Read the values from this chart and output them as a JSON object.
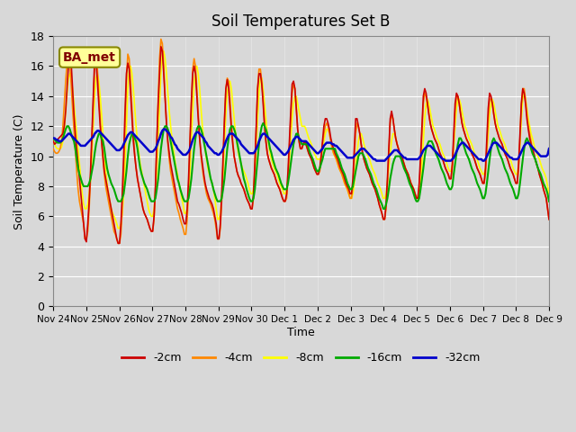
{
  "title": "Soil Temperatures Set B",
  "xlabel": "Time",
  "ylabel": "Soil Temperature (C)",
  "station_label": "BA_met",
  "ylim": [
    0,
    18
  ],
  "yticks": [
    0,
    2,
    4,
    6,
    8,
    10,
    12,
    14,
    16,
    18
  ],
  "x_labels": [
    "Nov 24",
    "Nov 25",
    "Nov 26",
    "Nov 27",
    "Nov 28",
    "Nov 29",
    "Nov 30",
    "Dec 1",
    "Dec 2",
    "Dec 3",
    "Dec 4",
    "Dec 5",
    "Dec 6",
    "Dec 7",
    "Dec 8",
    "Dec 9"
  ],
  "legend_labels": [
    "-2cm",
    "-4cm",
    "-8cm",
    "-16cm",
    "-32cm"
  ],
  "legend_colors": [
    "#cc0000",
    "#ff8800",
    "#ffff00",
    "#00aa00",
    "#0000cc"
  ],
  "plot_bg_color": "#d8d8d8",
  "n_points_per_day": 24,
  "num_days": 15,
  "depth_2cm": [
    11.0,
    10.8,
    10.9,
    11.1,
    11.2,
    11.3,
    11.4,
    11.5,
    12.0,
    13.0,
    14.5,
    16.0,
    16.8,
    16.2,
    14.5,
    12.8,
    11.5,
    10.5,
    9.5,
    8.5,
    7.5,
    6.5,
    5.5,
    4.5,
    4.3,
    5.5,
    7.0,
    9.0,
    11.5,
    14.0,
    16.5,
    16.3,
    15.0,
    13.5,
    12.0,
    11.0,
    10.0,
    9.0,
    8.5,
    8.0,
    7.5,
    7.0,
    6.5,
    6.0,
    5.5,
    5.0,
    4.5,
    4.2,
    4.2,
    5.5,
    7.5,
    10.0,
    13.0,
    15.5,
    16.2,
    15.8,
    14.2,
    12.5,
    11.0,
    10.0,
    9.2,
    8.5,
    8.0,
    7.5,
    7.0,
    6.5,
    6.2,
    6.0,
    5.8,
    5.5,
    5.2,
    5.0,
    5.0,
    6.0,
    8.0,
    11.0,
    13.5,
    15.5,
    17.3,
    17.0,
    15.5,
    13.8,
    12.2,
    11.0,
    10.2,
    9.5,
    9.0,
    8.5,
    8.0,
    7.5,
    7.0,
    6.8,
    6.5,
    6.2,
    5.8,
    5.5,
    5.5,
    6.5,
    8.5,
    11.0,
    13.5,
    15.5,
    16.0,
    15.5,
    14.0,
    12.5,
    11.2,
    10.2,
    9.5,
    8.8,
    8.2,
    7.8,
    7.5,
    7.2,
    7.0,
    6.8,
    6.5,
    6.0,
    5.5,
    4.5,
    4.5,
    5.5,
    7.5,
    10.0,
    12.5,
    14.5,
    15.1,
    14.5,
    13.2,
    11.8,
    10.8,
    10.0,
    9.5,
    9.0,
    8.7,
    8.5,
    8.2,
    8.0,
    7.8,
    7.5,
    7.2,
    7.0,
    6.8,
    6.5,
    6.5,
    7.5,
    9.5,
    12.0,
    14.5,
    15.5,
    15.5,
    14.8,
    13.5,
    12.0,
    11.0,
    10.2,
    9.8,
    9.5,
    9.2,
    9.0,
    8.8,
    8.5,
    8.2,
    8.0,
    7.8,
    7.5,
    7.2,
    7.0,
    7.0,
    7.5,
    9.0,
    11.0,
    13.0,
    14.8,
    15.0,
    14.5,
    13.2,
    11.8,
    11.0,
    10.5,
    10.5,
    10.8,
    11.0,
    10.8,
    10.5,
    10.2,
    10.0,
    9.8,
    9.5,
    9.2,
    9.0,
    8.8,
    8.8,
    9.2,
    10.0,
    11.0,
    12.0,
    12.5,
    12.5,
    12.2,
    11.8,
    11.2,
    10.8,
    10.5,
    10.2,
    10.0,
    9.8,
    9.5,
    9.2,
    9.0,
    8.8,
    8.5,
    8.2,
    8.0,
    7.8,
    7.5,
    7.5,
    8.5,
    10.5,
    12.5,
    12.5,
    12.0,
    11.5,
    10.8,
    10.2,
    9.8,
    9.5,
    9.2,
    9.0,
    8.8,
    8.5,
    8.2,
    8.0,
    7.8,
    7.5,
    7.2,
    6.8,
    6.5,
    6.2,
    5.8,
    5.8,
    6.8,
    8.5,
    10.5,
    12.5,
    13.0,
    12.5,
    11.8,
    11.2,
    10.8,
    10.5,
    10.2,
    10.0,
    9.8,
    9.5,
    9.2,
    9.0,
    8.8,
    8.5,
    8.2,
    8.0,
    7.8,
    7.5,
    7.2,
    7.2,
    8.2,
    10.0,
    12.0,
    14.0,
    14.5,
    14.2,
    13.5,
    12.8,
    12.2,
    11.8,
    11.5,
    11.2,
    11.0,
    10.8,
    10.5,
    10.2,
    10.0,
    9.8,
    9.5,
    9.2,
    9.0,
    8.8,
    8.5,
    8.5,
    9.5,
    11.5,
    13.5,
    14.2,
    14.0,
    13.5,
    12.8,
    12.2,
    11.8,
    11.5,
    11.2,
    11.0,
    10.8,
    10.5,
    10.2,
    10.0,
    9.8,
    9.5,
    9.2,
    9.0,
    8.8,
    8.5,
    8.2,
    8.2,
    9.2,
    11.2,
    13.2,
    14.2,
    14.0,
    13.5,
    12.8,
    12.2,
    11.8,
    11.5,
    11.2,
    11.0,
    10.8,
    10.5,
    10.2,
    10.0,
    9.8,
    9.5,
    9.2,
    9.0,
    8.8,
    8.5,
    8.2,
    8.2,
    9.5,
    11.5,
    13.5,
    14.5,
    14.2,
    13.5,
    12.5,
    11.8,
    11.2,
    10.8,
    10.5,
    10.2,
    9.8,
    9.5,
    9.2,
    8.8,
    8.5,
    8.2,
    7.8,
    7.5,
    7.2,
    6.5,
    5.8
  ],
  "depth_4cm": [
    10.5,
    10.3,
    10.2,
    10.2,
    10.3,
    10.5,
    11.0,
    12.0,
    13.5,
    15.0,
    16.2,
    16.5,
    16.0,
    14.8,
    13.2,
    11.8,
    10.5,
    9.0,
    7.8,
    7.0,
    6.5,
    6.0,
    5.5,
    4.5,
    4.5,
    5.0,
    6.5,
    8.5,
    11.0,
    13.5,
    16.0,
    16.5,
    15.8,
    14.0,
    12.5,
    11.0,
    9.8,
    8.8,
    8.0,
    7.5,
    7.0,
    6.5,
    6.0,
    5.5,
    5.0,
    4.8,
    4.5,
    4.2,
    4.2,
    4.8,
    6.5,
    9.0,
    12.0,
    15.0,
    16.8,
    16.5,
    15.0,
    13.2,
    11.5,
    10.2,
    9.2,
    8.5,
    8.0,
    7.5,
    7.0,
    6.5,
    6.2,
    6.0,
    5.8,
    5.5,
    5.2,
    5.0,
    5.0,
    5.8,
    7.8,
    10.8,
    13.8,
    16.5,
    17.8,
    17.5,
    16.0,
    14.0,
    12.2,
    10.8,
    9.8,
    9.0,
    8.5,
    8.0,
    7.5,
    7.0,
    6.5,
    6.2,
    5.8,
    5.5,
    5.2,
    4.8,
    4.8,
    5.8,
    7.8,
    10.8,
    13.5,
    15.8,
    16.5,
    16.0,
    14.5,
    12.8,
    11.2,
    10.0,
    9.2,
    8.5,
    8.0,
    7.5,
    7.2,
    7.0,
    6.8,
    6.5,
    6.2,
    5.8,
    5.2,
    4.5,
    4.5,
    5.2,
    7.0,
    9.5,
    12.2,
    14.5,
    15.2,
    15.0,
    13.8,
    12.2,
    11.0,
    10.0,
    9.5,
    9.0,
    8.7,
    8.5,
    8.2,
    8.0,
    7.8,
    7.5,
    7.2,
    7.0,
    6.8,
    6.5,
    6.5,
    7.2,
    9.2,
    11.8,
    14.5,
    15.8,
    15.8,
    15.0,
    13.8,
    12.2,
    11.0,
    10.2,
    9.8,
    9.5,
    9.2,
    9.0,
    8.8,
    8.5,
    8.2,
    8.0,
    7.8,
    7.5,
    7.2,
    7.0,
    7.0,
    7.2,
    8.5,
    10.5,
    12.5,
    14.2,
    14.8,
    14.5,
    13.2,
    11.8,
    11.0,
    10.5,
    10.5,
    10.8,
    11.0,
    10.8,
    10.5,
    10.2,
    10.0,
    9.8,
    9.5,
    9.2,
    9.0,
    8.8,
    8.8,
    9.0,
    9.8,
    10.8,
    11.5,
    12.0,
    12.2,
    12.0,
    11.5,
    11.0,
    10.5,
    10.2,
    10.0,
    9.8,
    9.5,
    9.2,
    9.0,
    8.8,
    8.5,
    8.2,
    8.0,
    7.8,
    7.5,
    7.2,
    7.2,
    8.0,
    9.8,
    11.5,
    12.2,
    12.0,
    11.5,
    10.8,
    10.2,
    9.8,
    9.5,
    9.2,
    9.0,
    8.8,
    8.5,
    8.2,
    8.0,
    7.8,
    7.5,
    7.2,
    6.8,
    6.5,
    6.2,
    5.8,
    5.8,
    6.5,
    8.2,
    10.2,
    12.2,
    12.8,
    12.5,
    11.8,
    11.2,
    10.8,
    10.5,
    10.2,
    10.0,
    9.8,
    9.5,
    9.2,
    9.0,
    8.8,
    8.5,
    8.2,
    8.0,
    7.8,
    7.5,
    7.2,
    7.2,
    7.8,
    9.5,
    11.5,
    13.5,
    14.2,
    14.0,
    13.5,
    12.8,
    12.2,
    11.8,
    11.5,
    11.2,
    11.0,
    10.8,
    10.5,
    10.2,
    10.0,
    9.8,
    9.5,
    9.2,
    9.0,
    8.8,
    8.5,
    8.5,
    9.2,
    11.0,
    13.0,
    14.0,
    14.0,
    13.5,
    12.8,
    12.2,
    11.8,
    11.5,
    11.2,
    11.0,
    10.8,
    10.5,
    10.2,
    10.0,
    9.8,
    9.5,
    9.2,
    9.0,
    8.8,
    8.5,
    8.2,
    8.2,
    8.8,
    10.5,
    12.5,
    13.8,
    13.8,
    13.5,
    12.8,
    12.2,
    11.8,
    11.5,
    11.2,
    11.0,
    10.8,
    10.5,
    10.2,
    10.0,
    9.8,
    9.5,
    9.2,
    9.0,
    8.8,
    8.5,
    8.2,
    8.2,
    9.2,
    11.2,
    13.5,
    14.5,
    14.5,
    13.8,
    12.8,
    12.0,
    11.5,
    11.0,
    10.5,
    10.2,
    9.8,
    9.5,
    9.2,
    8.8,
    8.5,
    8.2,
    7.8,
    7.5,
    7.2,
    6.5,
    5.8
  ],
  "depth_8cm": [
    11.0,
    10.8,
    10.6,
    10.5,
    10.5,
    10.5,
    10.6,
    11.0,
    11.8,
    13.0,
    14.2,
    15.2,
    15.5,
    15.2,
    14.5,
    13.5,
    12.5,
    11.5,
    10.5,
    9.5,
    8.5,
    7.5,
    6.8,
    6.5,
    6.5,
    6.8,
    7.5,
    8.5,
    10.0,
    12.0,
    14.0,
    15.2,
    15.5,
    15.0,
    14.0,
    12.8,
    11.5,
    10.2,
    9.0,
    8.2,
    7.5,
    7.0,
    6.5,
    6.2,
    6.0,
    5.8,
    5.5,
    5.2,
    5.2,
    5.5,
    6.2,
    7.5,
    9.5,
    12.0,
    14.5,
    15.8,
    16.0,
    15.5,
    14.5,
    13.2,
    12.0,
    11.0,
    10.2,
    9.5,
    9.0,
    8.5,
    8.0,
    7.5,
    7.0,
    6.5,
    6.2,
    6.0,
    6.0,
    6.5,
    7.5,
    9.0,
    11.0,
    13.5,
    15.5,
    16.8,
    17.0,
    16.5,
    15.5,
    14.2,
    13.0,
    12.0,
    11.2,
    10.5,
    9.8,
    9.2,
    8.8,
    8.2,
    7.8,
    7.2,
    6.8,
    6.2,
    6.2,
    6.5,
    7.5,
    9.0,
    11.0,
    13.0,
    14.8,
    15.8,
    16.0,
    15.5,
    14.5,
    13.2,
    12.0,
    11.2,
    10.5,
    9.8,
    9.2,
    8.8,
    8.5,
    8.2,
    7.8,
    7.2,
    6.5,
    5.8,
    5.8,
    6.2,
    7.2,
    8.8,
    10.8,
    12.8,
    14.2,
    14.8,
    15.0,
    14.5,
    13.5,
    12.5,
    11.5,
    10.8,
    10.2,
    9.8,
    9.5,
    9.2,
    9.0,
    8.8,
    8.5,
    8.2,
    7.8,
    7.5,
    7.5,
    7.8,
    8.8,
    10.5,
    12.5,
    14.2,
    15.2,
    15.2,
    14.5,
    13.5,
    12.5,
    11.5,
    10.8,
    10.2,
    9.8,
    9.5,
    9.2,
    9.0,
    8.8,
    8.5,
    8.2,
    8.0,
    7.8,
    7.5,
    7.5,
    7.8,
    8.5,
    9.8,
    11.2,
    12.5,
    13.5,
    14.0,
    14.0,
    13.5,
    13.0,
    12.5,
    12.0,
    12.0,
    12.0,
    11.8,
    11.5,
    11.2,
    11.0,
    10.8,
    10.5,
    10.2,
    10.0,
    9.8,
    9.8,
    9.8,
    10.0,
    10.5,
    11.0,
    11.5,
    11.8,
    11.8,
    11.5,
    11.0,
    10.5,
    10.2,
    10.0,
    9.8,
    9.5,
    9.2,
    9.0,
    8.8,
    8.5,
    8.2,
    8.0,
    7.8,
    7.5,
    7.2,
    7.2,
    7.5,
    8.2,
    9.2,
    10.2,
    11.0,
    11.5,
    11.5,
    11.2,
    10.8,
    10.5,
    10.2,
    10.0,
    9.8,
    9.5,
    9.2,
    9.0,
    8.8,
    8.5,
    8.2,
    8.0,
    7.8,
    7.5,
    7.2,
    7.2,
    7.5,
    8.2,
    9.2,
    10.2,
    11.0,
    11.5,
    11.5,
    11.2,
    10.8,
    10.5,
    10.2,
    10.0,
    9.8,
    9.5,
    9.2,
    9.0,
    8.8,
    8.5,
    8.2,
    8.0,
    7.8,
    7.5,
    7.2,
    7.2,
    7.5,
    8.2,
    9.5,
    11.0,
    12.5,
    13.5,
    13.8,
    13.5,
    13.0,
    12.5,
    12.0,
    11.8,
    11.5,
    11.2,
    11.0,
    10.8,
    10.5,
    10.2,
    10.0,
    9.8,
    9.5,
    9.2,
    9.0,
    9.0,
    9.5,
    10.5,
    12.0,
    13.2,
    13.8,
    13.8,
    13.5,
    13.0,
    12.5,
    12.0,
    11.8,
    11.5,
    11.2,
    11.0,
    10.8,
    10.5,
    10.2,
    10.0,
    9.8,
    9.5,
    9.2,
    9.0,
    8.8,
    8.8,
    9.2,
    10.2,
    11.5,
    12.8,
    13.5,
    13.8,
    13.5,
    13.0,
    12.5,
    12.0,
    11.8,
    11.5,
    11.2,
    11.0,
    10.8,
    10.5,
    10.2,
    10.0,
    9.8,
    9.5,
    9.2,
    9.0,
    8.8,
    8.8,
    9.5,
    10.8,
    12.5,
    13.8,
    14.2,
    13.8,
    13.2,
    12.5,
    12.0,
    11.5,
    11.2,
    10.8,
    10.5,
    10.2,
    10.0,
    9.8,
    9.5,
    9.2,
    9.0,
    8.8,
    8.5,
    8.0,
    7.5
  ],
  "depth_16cm": [
    11.2,
    11.1,
    11.0,
    10.9,
    10.9,
    10.9,
    11.0,
    11.2,
    11.5,
    11.8,
    12.0,
    12.0,
    11.8,
    11.5,
    11.2,
    11.0,
    10.5,
    9.8,
    9.2,
    8.8,
    8.5,
    8.2,
    8.0,
    8.0,
    8.0,
    8.0,
    8.2,
    8.5,
    9.0,
    9.5,
    10.2,
    10.8,
    11.2,
    11.5,
    11.5,
    11.2,
    11.0,
    10.5,
    9.8,
    9.2,
    8.8,
    8.5,
    8.2,
    8.0,
    7.8,
    7.5,
    7.2,
    7.0,
    7.0,
    7.0,
    7.2,
    7.5,
    8.2,
    9.0,
    10.0,
    10.8,
    11.2,
    11.5,
    11.5,
    11.2,
    11.0,
    10.5,
    9.8,
    9.2,
    8.8,
    8.5,
    8.2,
    8.0,
    7.8,
    7.5,
    7.2,
    7.0,
    7.0,
    7.0,
    7.2,
    7.8,
    8.5,
    9.5,
    10.5,
    11.2,
    11.8,
    12.0,
    12.0,
    11.8,
    11.5,
    11.0,
    10.5,
    10.0,
    9.5,
    9.0,
    8.5,
    8.2,
    7.8,
    7.5,
    7.2,
    7.0,
    7.0,
    7.0,
    7.2,
    7.8,
    8.5,
    9.5,
    10.5,
    11.2,
    11.8,
    12.0,
    12.0,
    11.8,
    11.5,
    11.0,
    10.5,
    10.0,
    9.5,
    9.0,
    8.5,
    8.2,
    7.8,
    7.5,
    7.2,
    7.0,
    7.0,
    7.0,
    7.2,
    7.8,
    8.5,
    9.5,
    10.5,
    11.2,
    11.8,
    12.0,
    12.0,
    11.8,
    11.5,
    11.0,
    10.5,
    10.0,
    9.5,
    9.0,
    8.5,
    8.2,
    7.8,
    7.5,
    7.2,
    7.0,
    7.0,
    7.2,
    7.8,
    8.8,
    9.8,
    10.8,
    11.5,
    12.0,
    12.2,
    12.0,
    11.8,
    11.5,
    11.0,
    10.5,
    10.2,
    9.8,
    9.5,
    9.2,
    9.0,
    8.8,
    8.5,
    8.2,
    8.0,
    7.8,
    7.8,
    7.8,
    8.2,
    8.8,
    9.5,
    10.2,
    10.8,
    11.2,
    11.5,
    11.5,
    11.2,
    11.0,
    10.8,
    10.8,
    10.8,
    10.8,
    10.8,
    10.5,
    10.2,
    10.0,
    9.8,
    9.5,
    9.2,
    9.0,
    9.0,
    9.2,
    9.5,
    9.8,
    10.2,
    10.5,
    10.5,
    10.5,
    10.5,
    10.5,
    10.5,
    10.5,
    10.5,
    10.2,
    10.0,
    9.8,
    9.5,
    9.2,
    9.0,
    8.8,
    8.5,
    8.2,
    8.0,
    7.8,
    7.8,
    8.0,
    8.5,
    9.0,
    9.5,
    10.0,
    10.2,
    10.2,
    10.2,
    10.0,
    9.8,
    9.5,
    9.2,
    9.0,
    8.8,
    8.5,
    8.2,
    8.0,
    7.8,
    7.5,
    7.2,
    7.0,
    6.8,
    6.5,
    6.5,
    6.8,
    7.2,
    7.8,
    8.5,
    9.0,
    9.5,
    9.8,
    10.0,
    10.0,
    10.0,
    10.0,
    9.8,
    9.5,
    9.2,
    9.0,
    8.8,
    8.5,
    8.2,
    8.0,
    7.8,
    7.5,
    7.2,
    7.0,
    7.0,
    7.2,
    7.8,
    8.5,
    9.2,
    10.0,
    10.5,
    10.8,
    11.0,
    11.0,
    11.0,
    10.8,
    10.5,
    10.2,
    10.0,
    9.8,
    9.5,
    9.2,
    9.0,
    8.8,
    8.5,
    8.2,
    8.0,
    7.8,
    7.8,
    8.0,
    8.8,
    9.5,
    10.2,
    10.8,
    11.2,
    11.2,
    11.0,
    10.8,
    10.5,
    10.2,
    10.0,
    9.8,
    9.5,
    9.2,
    9.0,
    8.8,
    8.5,
    8.2,
    8.0,
    7.8,
    7.5,
    7.2,
    7.2,
    7.5,
    8.2,
    9.0,
    9.8,
    10.5,
    11.0,
    11.2,
    11.0,
    10.8,
    10.5,
    10.2,
    10.0,
    9.8,
    9.5,
    9.2,
    9.0,
    8.8,
    8.5,
    8.2,
    8.0,
    7.8,
    7.5,
    7.2,
    7.2,
    7.5,
    8.2,
    9.0,
    9.8,
    10.5,
    11.0,
    11.2,
    11.0,
    10.8,
    10.5,
    10.2,
    10.0,
    9.8,
    9.5,
    9.2,
    9.0,
    8.8,
    8.5,
    8.2,
    8.0,
    7.8,
    7.5,
    7.0
  ],
  "depth_32cm": [
    11.2,
    11.2,
    11.1,
    11.1,
    11.0,
    11.0,
    11.0,
    11.1,
    11.2,
    11.3,
    11.4,
    11.5,
    11.5,
    11.4,
    11.3,
    11.2,
    11.1,
    11.0,
    10.9,
    10.8,
    10.7,
    10.7,
    10.7,
    10.7,
    10.8,
    10.9,
    11.0,
    11.1,
    11.2,
    11.3,
    11.5,
    11.6,
    11.7,
    11.7,
    11.6,
    11.5,
    11.4,
    11.3,
    11.2,
    11.1,
    11.0,
    10.9,
    10.8,
    10.7,
    10.6,
    10.5,
    10.4,
    10.4,
    10.4,
    10.5,
    10.6,
    10.8,
    11.0,
    11.2,
    11.4,
    11.5,
    11.6,
    11.6,
    11.5,
    11.4,
    11.3,
    11.2,
    11.1,
    11.0,
    10.9,
    10.8,
    10.7,
    10.6,
    10.5,
    10.4,
    10.3,
    10.3,
    10.3,
    10.4,
    10.5,
    10.7,
    11.0,
    11.2,
    11.5,
    11.7,
    11.8,
    11.8,
    11.7,
    11.6,
    11.5,
    11.3,
    11.2,
    11.0,
    10.8,
    10.7,
    10.5,
    10.4,
    10.3,
    10.2,
    10.1,
    10.1,
    10.1,
    10.2,
    10.3,
    10.5,
    10.8,
    11.1,
    11.3,
    11.5,
    11.6,
    11.6,
    11.5,
    11.4,
    11.3,
    11.2,
    11.0,
    10.9,
    10.7,
    10.6,
    10.5,
    10.4,
    10.3,
    10.2,
    10.2,
    10.1,
    10.1,
    10.2,
    10.3,
    10.5,
    10.7,
    11.0,
    11.2,
    11.4,
    11.5,
    11.5,
    11.5,
    11.4,
    11.3,
    11.2,
    11.1,
    11.0,
    10.8,
    10.7,
    10.6,
    10.5,
    10.4,
    10.3,
    10.2,
    10.2,
    10.2,
    10.2,
    10.3,
    10.5,
    10.7,
    11.0,
    11.2,
    11.4,
    11.5,
    11.5,
    11.4,
    11.3,
    11.2,
    11.1,
    11.0,
    10.9,
    10.8,
    10.7,
    10.6,
    10.5,
    10.4,
    10.3,
    10.2,
    10.1,
    10.1,
    10.2,
    10.3,
    10.5,
    10.7,
    10.9,
    11.1,
    11.2,
    11.3,
    11.3,
    11.2,
    11.1,
    11.0,
    11.0,
    11.0,
    11.0,
    10.9,
    10.8,
    10.7,
    10.6,
    10.5,
    10.4,
    10.3,
    10.2,
    10.2,
    10.3,
    10.4,
    10.5,
    10.7,
    10.8,
    10.9,
    10.9,
    10.9,
    10.9,
    10.8,
    10.8,
    10.7,
    10.7,
    10.6,
    10.5,
    10.4,
    10.3,
    10.2,
    10.1,
    10.0,
    9.9,
    9.9,
    9.9,
    9.9,
    9.9,
    10.0,
    10.1,
    10.2,
    10.3,
    10.4,
    10.5,
    10.5,
    10.5,
    10.4,
    10.3,
    10.2,
    10.1,
    10.0,
    9.9,
    9.8,
    9.8,
    9.7,
    9.7,
    9.7,
    9.7,
    9.7,
    9.7,
    9.7,
    9.8,
    9.9,
    10.0,
    10.1,
    10.2,
    10.3,
    10.4,
    10.4,
    10.4,
    10.3,
    10.2,
    10.1,
    10.0,
    9.9,
    9.9,
    9.8,
    9.8,
    9.8,
    9.8,
    9.8,
    9.8,
    9.8,
    9.8,
    9.8,
    9.9,
    10.0,
    10.2,
    10.4,
    10.5,
    10.6,
    10.7,
    10.7,
    10.7,
    10.6,
    10.5,
    10.4,
    10.3,
    10.2,
    10.1,
    10.0,
    9.9,
    9.8,
    9.8,
    9.7,
    9.7,
    9.7,
    9.7,
    9.7,
    9.8,
    9.9,
    10.1,
    10.3,
    10.5,
    10.7,
    10.8,
    10.9,
    10.9,
    10.8,
    10.7,
    10.6,
    10.5,
    10.4,
    10.3,
    10.2,
    10.1,
    10.0,
    9.9,
    9.8,
    9.8,
    9.8,
    9.7,
    9.7,
    9.8,
    10.0,
    10.2,
    10.4,
    10.6,
    10.8,
    10.9,
    10.9,
    10.9,
    10.8,
    10.7,
    10.6,
    10.5,
    10.4,
    10.3,
    10.2,
    10.1,
    10.0,
    9.9,
    9.9,
    9.8,
    9.8,
    9.8,
    9.8,
    9.9,
    10.1,
    10.3,
    10.5,
    10.7,
    10.8,
    10.9,
    10.9,
    10.8,
    10.7,
    10.6,
    10.5,
    10.4,
    10.3,
    10.2,
    10.1,
    10.0,
    10.0,
    10.0,
    10.0,
    10.0,
    10.1,
    10.5
  ]
}
